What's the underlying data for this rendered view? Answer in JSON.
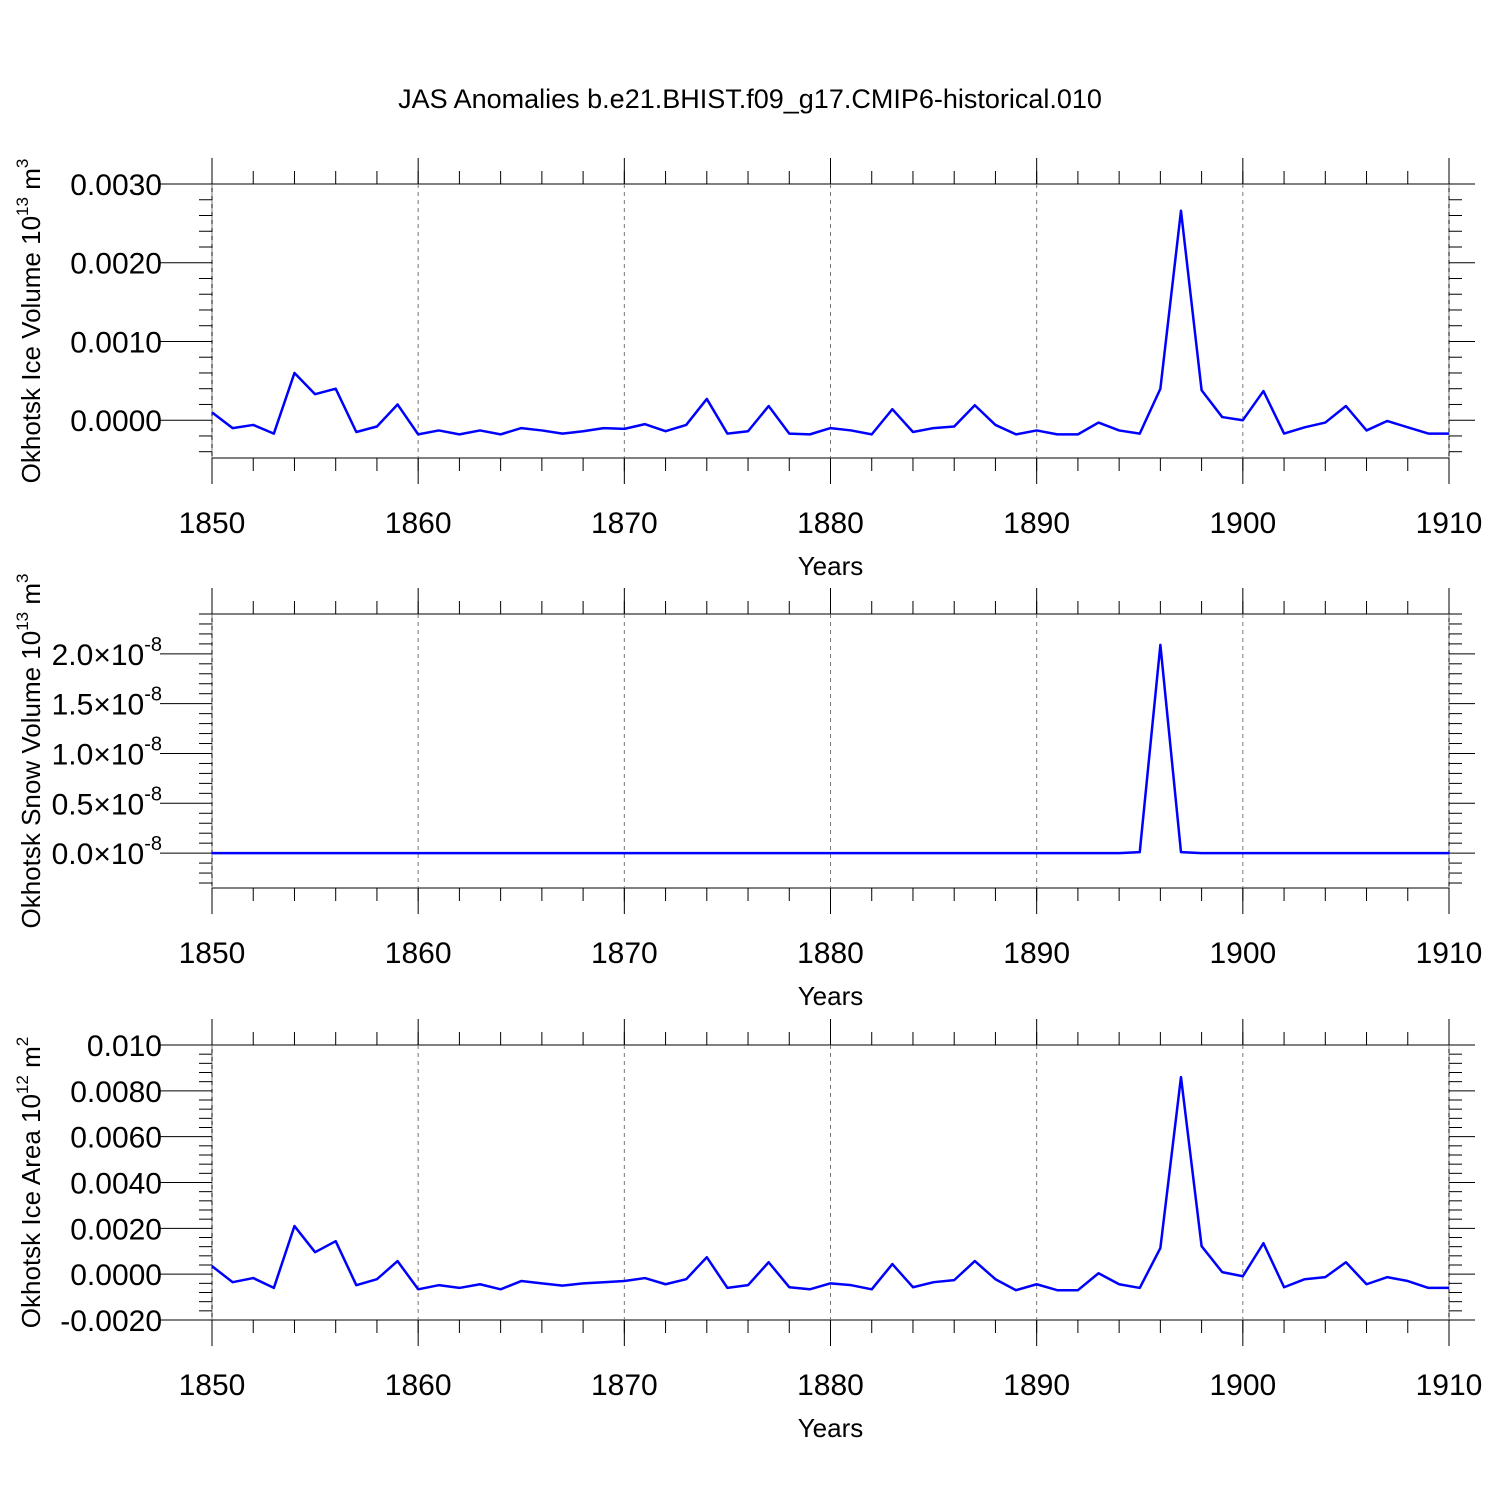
{
  "title": "JAS Anomalies b.e21.BHIST.f09_g17.CMIP6-historical.010",
  "chart_data": [
    {
      "type": "line",
      "ylabel": [
        "Okhotsk Ice Volume 10",
        "13",
        " m",
        "3"
      ],
      "xlabel": "Years",
      "x": [
        1850,
        1851,
        1852,
        1853,
        1854,
        1855,
        1856,
        1857,
        1858,
        1859,
        1860,
        1861,
        1862,
        1863,
        1864,
        1865,
        1866,
        1867,
        1868,
        1869,
        1870,
        1871,
        1872,
        1873,
        1874,
        1875,
        1876,
        1877,
        1878,
        1879,
        1880,
        1881,
        1882,
        1883,
        1884,
        1885,
        1886,
        1887,
        1888,
        1889,
        1890,
        1891,
        1892,
        1893,
        1894,
        1895,
        1896,
        1897,
        1898,
        1899,
        1900,
        1901,
        1902,
        1903,
        1904,
        1905,
        1906,
        1907,
        1908,
        1909,
        1910
      ],
      "series": [
        {
          "color": "#0000ff",
          "values": [
            0.0001,
            -0.0001,
            -6e-05,
            -0.00017,
            0.0006,
            0.00033,
            0.0004,
            -0.00015,
            -8e-05,
            0.0002,
            -0.00018,
            -0.00013,
            -0.00018,
            -0.00013,
            -0.00018,
            -0.0001,
            -0.00013,
            -0.00017,
            -0.00014,
            -0.0001,
            -0.00011,
            -5e-05,
            -0.00014,
            -6e-05,
            0.00027,
            -0.00017,
            -0.00014,
            0.00018,
            -0.00017,
            -0.00018,
            -0.0001,
            -0.00013,
            -0.00018,
            0.00014,
            -0.00015,
            -0.0001,
            -8e-05,
            0.00019,
            -6e-05,
            -0.00018,
            -0.00013,
            -0.00018,
            -0.00018,
            -3e-05,
            -0.00013,
            -0.00017,
            0.0004,
            0.00266,
            0.00038,
            4e-05,
            0,
            0.00037,
            -0.00017,
            -9e-05,
            -3e-05,
            0.00018,
            -0.00013,
            -1e-05,
            -9e-05,
            -0.00017,
            -0.00017
          ]
        }
      ],
      "xlim": [
        1850,
        1910
      ],
      "xticks": [
        1850,
        1860,
        1870,
        1880,
        1890,
        1900,
        1910
      ],
      "ylim": [
        -0.00048,
        0.003
      ],
      "yticks": [
        {
          "value": 0,
          "label": "0.0000"
        },
        {
          "value": 0.001,
          "label": "0.0010"
        },
        {
          "value": 0.002,
          "label": "0.0020"
        },
        {
          "value": 0.003,
          "label": "0.0030"
        }
      ],
      "grid": true
    },
    {
      "type": "line",
      "ylabel": [
        "Okhotsk Snow Volume 10",
        "13",
        " m",
        "3"
      ],
      "xlabel": "Years",
      "x": [
        1850,
        1851,
        1852,
        1853,
        1854,
        1855,
        1856,
        1857,
        1858,
        1859,
        1860,
        1861,
        1862,
        1863,
        1864,
        1865,
        1866,
        1867,
        1868,
        1869,
        1870,
        1871,
        1872,
        1873,
        1874,
        1875,
        1876,
        1877,
        1878,
        1879,
        1880,
        1881,
        1882,
        1883,
        1884,
        1885,
        1886,
        1887,
        1888,
        1889,
        1890,
        1891,
        1892,
        1893,
        1894,
        1895,
        1896,
        1897,
        1898,
        1899,
        1900,
        1901,
        1902,
        1903,
        1904,
        1905,
        1906,
        1907,
        1908,
        1909,
        1910
      ],
      "series": [
        {
          "color": "#0000ff",
          "values": [
            0,
            0,
            0,
            0,
            0,
            0,
            0,
            0,
            0,
            0,
            0,
            0,
            0,
            0,
            0,
            0,
            0,
            0,
            0,
            0,
            0,
            0,
            0,
            0,
            0,
            0,
            0,
            0,
            0,
            0,
            0,
            0,
            0,
            0,
            0,
            0,
            0,
            0,
            0,
            0,
            0,
            0,
            0,
            0,
            0,
            1e-10,
            2.09e-08,
            1e-10,
            0,
            0,
            0,
            0,
            0,
            0,
            0,
            0,
            0,
            0,
            0,
            0,
            0
          ]
        }
      ],
      "xlim": [
        1850,
        1910
      ],
      "xticks": [
        1850,
        1860,
        1870,
        1880,
        1890,
        1900,
        1910
      ],
      "ylim": [
        -3.5e-09,
        2.4e-08
      ],
      "yticks": [
        {
          "value": 0,
          "label": "0.0×10",
          "exponent": "-8"
        },
        {
          "value": 5e-09,
          "label": "0.5×10",
          "exponent": "-8"
        },
        {
          "value": 1e-08,
          "label": "1.0×10",
          "exponent": "-8"
        },
        {
          "value": 1.5e-08,
          "label": "1.5×10",
          "exponent": "-8"
        },
        {
          "value": 2e-08,
          "label": "2.0×10",
          "exponent": "-8"
        }
      ],
      "grid": true
    },
    {
      "type": "line",
      "ylabel": [
        "Okhotsk Ice Area 10",
        "12",
        " m",
        "2"
      ],
      "xlabel": "Years",
      "x": [
        1850,
        1851,
        1852,
        1853,
        1854,
        1855,
        1856,
        1857,
        1858,
        1859,
        1860,
        1861,
        1862,
        1863,
        1864,
        1865,
        1866,
        1867,
        1868,
        1869,
        1870,
        1871,
        1872,
        1873,
        1874,
        1875,
        1876,
        1877,
        1878,
        1879,
        1880,
        1881,
        1882,
        1883,
        1884,
        1885,
        1886,
        1887,
        1888,
        1889,
        1890,
        1891,
        1892,
        1893,
        1894,
        1895,
        1896,
        1897,
        1898,
        1899,
        1900,
        1901,
        1902,
        1903,
        1904,
        1905,
        1906,
        1907,
        1908,
        1909,
        1910
      ],
      "series": [
        {
          "color": "#0000ff",
          "values": [
            0.00035,
            -0.00035,
            -0.00017,
            -0.0006,
            0.0021,
            0.00096,
            0.00144,
            -0.00048,
            -0.00022,
            0.00057,
            -0.00066,
            -0.00048,
            -0.0006,
            -0.00044,
            -0.00066,
            -0.0003,
            -0.0004,
            -0.0005,
            -0.0004,
            -0.00035,
            -0.0003,
            -0.00017,
            -0.00044,
            -0.00022,
            0.00074,
            -0.0006,
            -0.00048,
            0.00052,
            -0.00057,
            -0.00066,
            -0.0004,
            -0.00048,
            -0.00066,
            0.00044,
            -0.00057,
            -0.00035,
            -0.00026,
            0.00057,
            -0.00022,
            -0.0007,
            -0.00044,
            -0.0007,
            -0.0007,
            4e-05,
            -0.00044,
            -0.0006,
            0.00114,
            0.0086,
            0.00122,
            9e-05,
            -9e-05,
            0.00135,
            -0.00057,
            -0.00022,
            -0.00013,
            0.00052,
            -0.00044,
            -0.00013,
            -0.0003,
            -0.0006,
            -0.0006
          ]
        }
      ],
      "xlim": [
        1850,
        1910
      ],
      "xticks": [
        1850,
        1860,
        1870,
        1880,
        1890,
        1900,
        1910
      ],
      "ylim": [
        -0.002,
        0.01
      ],
      "yticks": [
        {
          "value": -0.002,
          "label": "-0.0020"
        },
        {
          "value": 0,
          "label": "0.0000"
        },
        {
          "value": 0.002,
          "label": "0.0020"
        },
        {
          "value": 0.004,
          "label": "0.0040"
        },
        {
          "value": 0.006,
          "label": "0.0060"
        },
        {
          "value": 0.008,
          "label": "0.0080"
        },
        {
          "value": 0.01,
          "label": "0.010"
        }
      ],
      "grid": true
    }
  ]
}
